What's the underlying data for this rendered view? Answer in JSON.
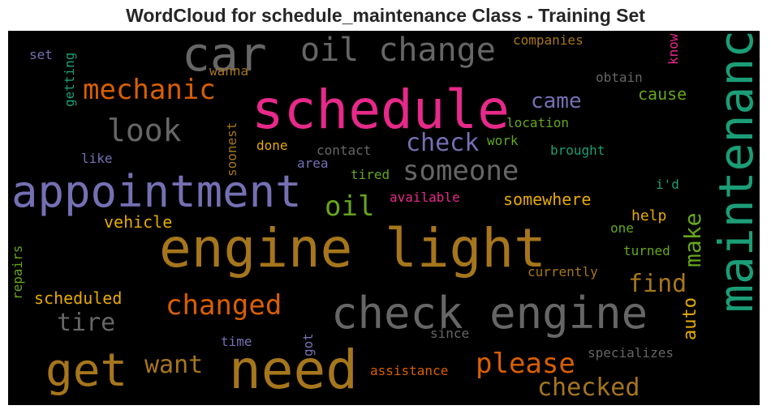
{
  "title": "WordCloud for schedule_maintenance Class - Training Set",
  "chart_data": {
    "type": "wordcloud",
    "title": "WordCloud for schedule_maintenance Class - Training Set",
    "background": "#000000",
    "words": [
      {
        "text": "schedule",
        "weight": 100,
        "color": "#e7298a"
      },
      {
        "text": "need",
        "weight": 92,
        "color": "#a6761d"
      },
      {
        "text": "engine light",
        "weight": 90,
        "color": "#a6761d"
      },
      {
        "text": "maintenance",
        "weight": 88,
        "color": "#1b9e77"
      },
      {
        "text": "check engine",
        "weight": 80,
        "color": "#666666"
      },
      {
        "text": "appointment",
        "weight": 78,
        "color": "#7570b3"
      },
      {
        "text": "car",
        "weight": 76,
        "color": "#666666"
      },
      {
        "text": "get",
        "weight": 74,
        "color": "#a6761d"
      },
      {
        "text": "oil change",
        "weight": 60,
        "color": "#666666"
      },
      {
        "text": "look",
        "weight": 56,
        "color": "#666666"
      },
      {
        "text": "someone",
        "weight": 50,
        "color": "#666666"
      },
      {
        "text": "mechanic",
        "weight": 50,
        "color": "#d95f02"
      },
      {
        "text": "changed",
        "weight": 48,
        "color": "#d95f02"
      },
      {
        "text": "please",
        "weight": 48,
        "color": "#d95f02"
      },
      {
        "text": "checked",
        "weight": 44,
        "color": "#a6761d"
      },
      {
        "text": "tire",
        "weight": 44,
        "color": "#666666"
      },
      {
        "text": "oil",
        "weight": 44,
        "color": "#66a61e"
      },
      {
        "text": "check",
        "weight": 42,
        "color": "#7570b3"
      },
      {
        "text": "want",
        "weight": 42,
        "color": "#a6761d"
      },
      {
        "text": "find",
        "weight": 40,
        "color": "#a6761d"
      },
      {
        "text": "make",
        "weight": 40,
        "color": "#66a61e"
      },
      {
        "text": "came",
        "weight": 36,
        "color": "#7570b3"
      },
      {
        "text": "auto",
        "weight": 28,
        "color": "#e6ab02"
      },
      {
        "text": "cause",
        "weight": 26,
        "color": "#66a61e"
      },
      {
        "text": "somewhere",
        "weight": 26,
        "color": "#e6ab02"
      },
      {
        "text": "vehicle",
        "weight": 26,
        "color": "#e6ab02"
      },
      {
        "text": "scheduled",
        "weight": 26,
        "color": "#e6ab02"
      },
      {
        "text": "help",
        "weight": 24,
        "color": "#e6ab02"
      },
      {
        "text": "specializes",
        "weight": 22,
        "color": "#666666"
      },
      {
        "text": "companies",
        "weight": 20,
        "color": "#a6761d"
      },
      {
        "text": "obtain",
        "weight": 20,
        "color": "#666666"
      },
      {
        "text": "location",
        "weight": 20,
        "color": "#66a61e"
      },
      {
        "text": "work",
        "weight": 20,
        "color": "#66a61e"
      },
      {
        "text": "brought",
        "weight": 20,
        "color": "#1b9e77"
      },
      {
        "text": "contact",
        "weight": 20,
        "color": "#666666"
      },
      {
        "text": "done",
        "weight": 20,
        "color": "#e6ab02"
      },
      {
        "text": "tired",
        "weight": 20,
        "color": "#66a61e"
      },
      {
        "text": "available",
        "weight": 20,
        "color": "#e7298a"
      },
      {
        "text": "turned",
        "weight": 20,
        "color": "#66a61e"
      },
      {
        "text": "currently",
        "weight": 20,
        "color": "#a6761d"
      },
      {
        "text": "assistance",
        "weight": 20,
        "color": "#d95f02"
      },
      {
        "text": "since",
        "weight": 20,
        "color": "#666666"
      },
      {
        "text": "time",
        "weight": 20,
        "color": "#7570b3"
      },
      {
        "text": "wanna",
        "weight": 18,
        "color": "#a6761d"
      },
      {
        "text": "set",
        "weight": 18,
        "color": "#7570b3"
      },
      {
        "text": "like",
        "weight": 18,
        "color": "#7570b3"
      },
      {
        "text": "area",
        "weight": 18,
        "color": "#7570b3"
      },
      {
        "text": "i'd",
        "weight": 18,
        "color": "#1b9e77"
      },
      {
        "text": "one",
        "weight": 18,
        "color": "#66a61e"
      },
      {
        "text": "getting",
        "weight": 18,
        "color": "#1b9e77"
      },
      {
        "text": "soonest",
        "weight": 18,
        "color": "#a6761d"
      },
      {
        "text": "repairs",
        "weight": 18,
        "color": "#66a61e"
      },
      {
        "text": "got",
        "weight": 18,
        "color": "#7570b3"
      },
      {
        "text": "know",
        "weight": 18,
        "color": "#e7298a"
      }
    ]
  }
}
